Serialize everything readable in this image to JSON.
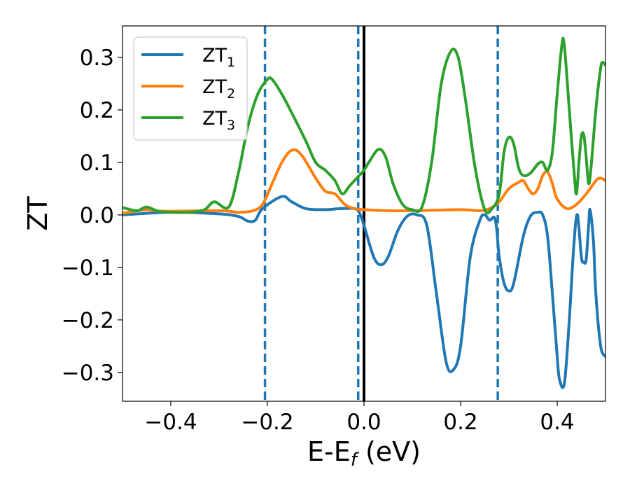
{
  "chart_data": {
    "type": "line",
    "xlabel": "E-E",
    "xlabel_sub": "f",
    "xlabel_unit": " (eV)",
    "ylabel": "ZT",
    "xlim": [
      -0.5,
      0.5
    ],
    "ylim": [
      -0.355,
      0.36
    ],
    "xticks": [
      -0.4,
      -0.2,
      0.0,
      0.2,
      0.4
    ],
    "xtick_labels": [
      "−0.4",
      "−0.2",
      "0.0",
      "0.2",
      "0.4"
    ],
    "yticks": [
      0.3,
      0.2,
      0.1,
      0.0,
      -0.1,
      -0.2,
      -0.3
    ],
    "ytick_labels": [
      "0.3",
      "0.2",
      "0.1",
      "0.0",
      "−0.1",
      "−0.2",
      "−0.3"
    ],
    "legend_position": "upper-left",
    "vlines": [
      {
        "x": -0.205,
        "style": "dashed",
        "color": "#1f77b4"
      },
      {
        "x": -0.012,
        "style": "dashed",
        "color": "#1f77b4"
      },
      {
        "x": 0.0,
        "style": "solid",
        "color": "#000000"
      },
      {
        "x": 0.277,
        "style": "dashed",
        "color": "#1f77b4"
      }
    ],
    "series": [
      {
        "name": "ZT",
        "name_sub": "1",
        "color": "#1f77b4",
        "points": [
          [
            -0.5,
            0.0
          ],
          [
            -0.4,
            0.005
          ],
          [
            -0.3,
            0.002
          ],
          [
            -0.26,
            -0.003
          ],
          [
            -0.24,
            -0.012
          ],
          [
            -0.225,
            -0.01
          ],
          [
            -0.21,
            0.012
          ],
          [
            -0.17,
            0.035
          ],
          [
            -0.15,
            0.025
          ],
          [
            -0.12,
            0.012
          ],
          [
            -0.08,
            0.01
          ],
          [
            -0.05,
            0.012
          ],
          [
            -0.02,
            0.012
          ],
          [
            -0.01,
            0.005
          ],
          [
            0.0,
            -0.02
          ],
          [
            0.02,
            -0.08
          ],
          [
            0.035,
            -0.095
          ],
          [
            0.05,
            -0.08
          ],
          [
            0.07,
            -0.03
          ],
          [
            0.09,
            -0.002
          ],
          [
            0.11,
            0.0
          ],
          [
            0.13,
            -0.02
          ],
          [
            0.15,
            -0.15
          ],
          [
            0.17,
            -0.28
          ],
          [
            0.185,
            -0.295
          ],
          [
            0.2,
            -0.25
          ],
          [
            0.22,
            -0.08
          ],
          [
            0.24,
            -0.01
          ],
          [
            0.25,
            0.0
          ],
          [
            0.26,
            -0.01
          ],
          [
            0.27,
            -0.005
          ],
          [
            0.275,
            -0.03
          ],
          [
            0.28,
            -0.08
          ],
          [
            0.29,
            -0.13
          ],
          [
            0.3,
            -0.145
          ],
          [
            0.31,
            -0.13
          ],
          [
            0.33,
            -0.04
          ],
          [
            0.345,
            -0.002
          ],
          [
            0.36,
            0.005
          ],
          [
            0.37,
            0.0
          ],
          [
            0.38,
            -0.04
          ],
          [
            0.39,
            -0.15
          ],
          [
            0.4,
            -0.27
          ],
          [
            0.405,
            -0.315
          ],
          [
            0.415,
            -0.32
          ],
          [
            0.425,
            -0.2
          ],
          [
            0.435,
            -0.05
          ],
          [
            0.442,
            0.0
          ],
          [
            0.45,
            -0.08
          ],
          [
            0.455,
            -0.09
          ],
          [
            0.46,
            -0.085
          ],
          [
            0.465,
            -0.02
          ],
          [
            0.468,
            0.01
          ],
          [
            0.475,
            -0.05
          ],
          [
            0.48,
            -0.15
          ],
          [
            0.49,
            -0.25
          ],
          [
            0.5,
            -0.27
          ]
        ]
      },
      {
        "name": "ZT",
        "name_sub": "2",
        "color": "#ff7f0e",
        "points": [
          [
            -0.5,
            0.003
          ],
          [
            -0.45,
            0.01
          ],
          [
            -0.42,
            0.007
          ],
          [
            -0.3,
            0.008
          ],
          [
            -0.26,
            0.005
          ],
          [
            -0.23,
            0.008
          ],
          [
            -0.21,
            0.02
          ],
          [
            -0.19,
            0.06
          ],
          [
            -0.17,
            0.1
          ],
          [
            -0.15,
            0.123
          ],
          [
            -0.13,
            0.115
          ],
          [
            -0.1,
            0.07
          ],
          [
            -0.08,
            0.045
          ],
          [
            -0.06,
            0.04
          ],
          [
            -0.04,
            0.02
          ],
          [
            -0.02,
            0.012
          ],
          [
            0.0,
            0.01
          ],
          [
            0.05,
            0.008
          ],
          [
            0.1,
            0.008
          ],
          [
            0.2,
            0.01
          ],
          [
            0.24,
            0.008
          ],
          [
            0.26,
            0.012
          ],
          [
            0.28,
            0.025
          ],
          [
            0.3,
            0.05
          ],
          [
            0.32,
            0.062
          ],
          [
            0.33,
            0.065
          ],
          [
            0.34,
            0.05
          ],
          [
            0.35,
            0.04
          ],
          [
            0.36,
            0.05
          ],
          [
            0.37,
            0.075
          ],
          [
            0.38,
            0.082
          ],
          [
            0.39,
            0.06
          ],
          [
            0.4,
            0.03
          ],
          [
            0.42,
            0.012
          ],
          [
            0.44,
            0.02
          ],
          [
            0.46,
            0.04
          ],
          [
            0.48,
            0.065
          ],
          [
            0.49,
            0.07
          ],
          [
            0.5,
            0.065
          ]
        ]
      },
      {
        "name": "ZT",
        "name_sub": "3",
        "color": "#2ca02c",
        "points": [
          [
            -0.5,
            0.014
          ],
          [
            -0.47,
            0.008
          ],
          [
            -0.45,
            0.015
          ],
          [
            -0.42,
            0.006
          ],
          [
            -0.36,
            0.005
          ],
          [
            -0.33,
            0.01
          ],
          [
            -0.31,
            0.025
          ],
          [
            -0.28,
            0.015
          ],
          [
            -0.26,
            0.08
          ],
          [
            -0.24,
            0.17
          ],
          [
            -0.22,
            0.23
          ],
          [
            -0.2,
            0.258
          ],
          [
            -0.19,
            0.258
          ],
          [
            -0.17,
            0.23
          ],
          [
            -0.15,
            0.195
          ],
          [
            -0.12,
            0.14
          ],
          [
            -0.1,
            0.1
          ],
          [
            -0.08,
            0.085
          ],
          [
            -0.06,
            0.065
          ],
          [
            -0.045,
            0.04
          ],
          [
            -0.03,
            0.055
          ],
          [
            -0.01,
            0.075
          ],
          [
            0.0,
            0.085
          ],
          [
            0.01,
            0.1
          ],
          [
            0.03,
            0.125
          ],
          [
            0.045,
            0.11
          ],
          [
            0.06,
            0.06
          ],
          [
            0.08,
            0.02
          ],
          [
            0.1,
            0.01
          ],
          [
            0.12,
            0.015
          ],
          [
            0.14,
            0.1
          ],
          [
            0.16,
            0.25
          ],
          [
            0.18,
            0.312
          ],
          [
            0.195,
            0.3
          ],
          [
            0.21,
            0.22
          ],
          [
            0.23,
            0.09
          ],
          [
            0.25,
            0.01
          ],
          [
            0.265,
            0.012
          ],
          [
            0.28,
            0.04
          ],
          [
            0.29,
            0.12
          ],
          [
            0.3,
            0.148
          ],
          [
            0.31,
            0.135
          ],
          [
            0.32,
            0.09
          ],
          [
            0.33,
            0.075
          ],
          [
            0.345,
            0.08
          ],
          [
            0.36,
            0.097
          ],
          [
            0.37,
            0.1
          ],
          [
            0.38,
            0.085
          ],
          [
            0.39,
            0.12
          ],
          [
            0.4,
            0.23
          ],
          [
            0.41,
            0.326
          ],
          [
            0.415,
            0.32
          ],
          [
            0.425,
            0.2
          ],
          [
            0.435,
            0.08
          ],
          [
            0.44,
            0.04
          ],
          [
            0.445,
            0.1
          ],
          [
            0.45,
            0.15
          ],
          [
            0.455,
            0.152
          ],
          [
            0.46,
            0.11
          ],
          [
            0.465,
            0.06
          ],
          [
            0.47,
            0.09
          ],
          [
            0.48,
            0.2
          ],
          [
            0.49,
            0.28
          ],
          [
            0.495,
            0.29
          ],
          [
            0.5,
            0.285
          ]
        ]
      }
    ]
  }
}
